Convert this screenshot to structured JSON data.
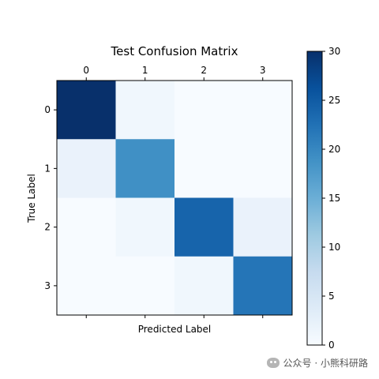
{
  "chart_data": {
    "type": "heatmap",
    "title": "Test Confusion Matrix",
    "xlabel": "Predicted Label",
    "ylabel": "True Label",
    "x_categories": [
      "0",
      "1",
      "2",
      "3"
    ],
    "y_categories": [
      "0",
      "1",
      "2",
      "3"
    ],
    "x_ticks_position": "top",
    "matrix": [
      [
        30,
        1,
        0,
        0
      ],
      [
        2,
        19,
        0,
        0
      ],
      [
        0,
        1,
        24,
        2
      ],
      [
        0,
        0,
        1,
        22
      ]
    ],
    "colorscale": "Blues",
    "colorbar": {
      "min": 0,
      "max": 30,
      "ticks": [
        "0",
        "5",
        "10",
        "15",
        "20",
        "25",
        "30"
      ],
      "position": "right"
    }
  },
  "watermark": {
    "text": "公众号 · 小熊科研路",
    "icon": "wechat-icon"
  }
}
